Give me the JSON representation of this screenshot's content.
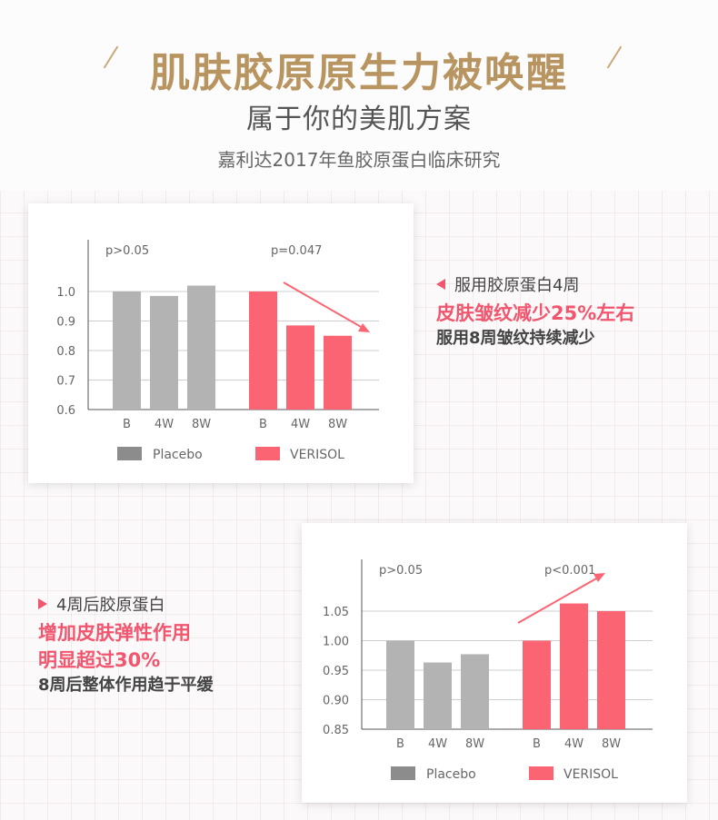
{
  "header": {
    "title": "肌肤胶原原生力被唤醒",
    "subtitle": "属于你的美肌方案",
    "study": "嘉利达2017年鱼胶原蛋白临床研究"
  },
  "colors": {
    "placebo": "#b3b3b3",
    "placebo_legend": "#8c8c8c",
    "verisol": "#fa6473",
    "accent": "#f2566e",
    "gold": "#b89460"
  },
  "callout1": {
    "line1": "服用胶原蛋白4周",
    "highlight": "皮肤皱纹减少25%左右",
    "line3": "服用8周皱纹持续减少"
  },
  "callout2": {
    "line1": "4周后胶原蛋白",
    "highlight1": "增加皮肤弹性作用",
    "highlight2": "明显超过30%",
    "line3": "8周后整体作用趋于平缓"
  },
  "chart_data": [
    {
      "type": "bar",
      "categories": [
        "B",
        "4W",
        "8W"
      ],
      "series": [
        {
          "name": "Placebo",
          "values": [
            1.0,
            0.985,
            1.02
          ]
        },
        {
          "name": "VERISOL",
          "values": [
            1.0,
            0.885,
            0.85
          ]
        }
      ],
      "ylim": [
        0.6,
        1.0
      ],
      "yticks": [
        1.0,
        0.9,
        0.8,
        0.7,
        0.6
      ],
      "ytick_labels": [
        "1.0",
        "0.9",
        "0.8",
        "0.7",
        "0.6"
      ],
      "annotations": [
        "p>0.05",
        "p=0.047"
      ],
      "trend": "down",
      "legend": "bottom",
      "grid": true
    },
    {
      "type": "bar",
      "categories": [
        "B",
        "4W",
        "8W"
      ],
      "series": [
        {
          "name": "Placebo",
          "values": [
            1.0,
            0.963,
            0.977
          ]
        },
        {
          "name": "VERISOL",
          "values": [
            1.0,
            1.063,
            1.05
          ]
        }
      ],
      "ylim": [
        0.85,
        1.05
      ],
      "yticks": [
        1.05,
        1.0,
        0.95,
        0.9,
        0.85
      ],
      "ytick_labels": [
        "1.05",
        "1.00",
        "0.95",
        "0.90",
        "0.85"
      ],
      "annotations": [
        "p>0.05",
        "p<0.001"
      ],
      "trend": "up",
      "legend": "bottom",
      "grid": true
    }
  ]
}
